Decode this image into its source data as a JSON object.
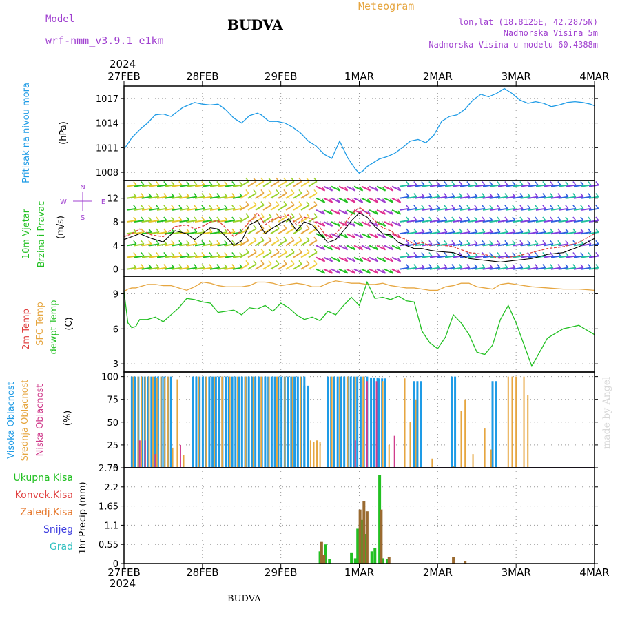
{
  "header": {
    "model_label": "Model",
    "model_name": "wrf-nmm_v3.9.1 e1km",
    "city": "BUDVA",
    "meteogram_label": "Meteogram",
    "lonlat": "lon,lat (18.8125E, 42.2875N)",
    "altitude": "Nadmorska Visina 5m",
    "model_altitude": "Nadmorska Visina u modelu 60.4388m",
    "year": "2024",
    "footer_city": "BUDVA",
    "watermark": "made by Angel"
  },
  "colors": {
    "pressure": "#1e9be6",
    "dewpoint": "#22c022",
    "sfc_temp": "#e6a640",
    "temp2m": "#e04040",
    "wind_speed": "#000000",
    "wind_gust": "#e04040",
    "high_cloud": "#1e9be6",
    "mid_cloud": "#e6a640",
    "low_cloud": "#d03c8c",
    "total_precip": "#22c022",
    "conv_precip": "#e04040",
    "frozen_precip": "#e67a30",
    "snow": "#4040e0",
    "grad": "#30c0c0",
    "purple_text": "#a040d0"
  },
  "chart_data": [
    {
      "type": "line",
      "panel": "pressure",
      "ylabel_lines": [
        "Pritisak na nivou mora",
        "(hPa)"
      ],
      "yticks": [
        1008,
        1011,
        1014,
        1017
      ],
      "ylim": [
        1007,
        1018.5
      ],
      "grid": true,
      "x": [
        0.0,
        0.1,
        0.2,
        0.3,
        0.4,
        0.5,
        0.6,
        0.75,
        0.9,
        1.0,
        1.1,
        1.2,
        1.3,
        1.4,
        1.5,
        1.6,
        1.7,
        1.75,
        1.85,
        1.95,
        2.05,
        2.15,
        2.25,
        2.35,
        2.45,
        2.55,
        2.65,
        2.75,
        2.85,
        2.95,
        3.0,
        3.05,
        3.1,
        3.15,
        3.25,
        3.35,
        3.45,
        3.55,
        3.65,
        3.75,
        3.85,
        3.95,
        4.05,
        4.15,
        4.25,
        4.35,
        4.45,
        4.55,
        4.65,
        4.75,
        4.85,
        4.95,
        5.05,
        5.15,
        5.25,
        5.35,
        5.45,
        5.55,
        5.65,
        5.75,
        5.85,
        5.95,
        6.0
      ],
      "series": [
        {
          "values": [
            1010.8,
            1012.2,
            1013.2,
            1014.0,
            1015.0,
            1015.1,
            1014.8,
            1015.9,
            1016.5,
            1016.3,
            1016.2,
            1016.3,
            1015.6,
            1014.6,
            1014.0,
            1014.9,
            1015.2,
            1015.0,
            1014.2,
            1014.2,
            1014.0,
            1013.5,
            1012.8,
            1011.8,
            1011.2,
            1010.2,
            1009.7,
            1011.8,
            1009.8,
            1008.4,
            1007.9,
            1008.2,
            1008.7,
            1009.0,
            1009.6,
            1009.9,
            1010.3,
            1011.0,
            1011.8,
            1012.0,
            1011.6,
            1012.5,
            1014.2,
            1014.8,
            1015.0,
            1015.7,
            1016.8,
            1017.5,
            1017.2,
            1017.6,
            1018.2,
            1017.6,
            1016.8,
            1016.4,
            1016.6,
            1016.4,
            1016.0,
            1016.2,
            1016.5,
            1016.6,
            1016.5,
            1016.3,
            1016.1
          ]
        }
      ]
    },
    {
      "type": "line",
      "panel": "wind",
      "ylabel_lines": [
        "10m Vjetar",
        "Brzina i Pravac",
        "(m/s)"
      ],
      "compass": [
        "N",
        "W",
        "E",
        "S"
      ],
      "yticks": [
        0,
        4,
        8,
        12
      ],
      "ylim": [
        -1.2,
        15
      ],
      "grid": true,
      "barb_rows": [
        0,
        2,
        4,
        6,
        8,
        10,
        12,
        14
      ],
      "x": [
        0.0,
        0.1,
        0.2,
        0.35,
        0.5,
        0.65,
        0.8,
        0.9,
        1.0,
        1.1,
        1.2,
        1.3,
        1.4,
        1.5,
        1.6,
        1.7,
        1.8,
        1.9,
        2.0,
        2.1,
        2.2,
        2.3,
        2.4,
        2.5,
        2.6,
        2.7,
        2.8,
        2.9,
        3.0,
        3.1,
        3.2,
        3.3,
        3.4,
        3.5,
        3.6,
        3.7,
        3.8,
        3.9,
        4.0,
        4.2,
        4.4,
        4.6,
        4.8,
        5.0,
        5.2,
        5.4,
        5.6,
        5.8,
        6.0
      ],
      "series": [
        {
          "name": "speed",
          "values": [
            5.0,
            5.5,
            6.0,
            5.2,
            4.6,
            6.5,
            6.0,
            5.0,
            6.0,
            7.0,
            6.8,
            5.5,
            4.0,
            4.8,
            7.5,
            8.2,
            6.0,
            7.0,
            7.8,
            8.5,
            6.5,
            8.0,
            7.5,
            6.0,
            4.5,
            5.0,
            6.5,
            8.2,
            9.5,
            8.8,
            7.2,
            6.0,
            5.8,
            4.5,
            4.0,
            3.5,
            3.5,
            3.2,
            3.0,
            2.8,
            1.8,
            1.5,
            1.2,
            1.5,
            1.8,
            2.5,
            2.8,
            3.8,
            5.2
          ]
        },
        {
          "name": "gust",
          "values": [
            5.5,
            6.0,
            6.8,
            5.8,
            5.5,
            7.2,
            7.5,
            6.8,
            7.2,
            8.0,
            8.2,
            7.0,
            5.5,
            6.5,
            8.0,
            9.5,
            7.5,
            8.5,
            8.8,
            9.2,
            7.5,
            8.8,
            8.5,
            7.0,
            5.2,
            6.0,
            7.5,
            9.2,
            10.5,
            9.5,
            8.2,
            7.0,
            6.5,
            5.5,
            5.0,
            4.2,
            4.5,
            4.0,
            4.2,
            3.8,
            2.8,
            2.5,
            1.8,
            2.2,
            2.8,
            3.5,
            3.8,
            4.5,
            6.0
          ]
        }
      ]
    },
    {
      "type": "line",
      "panel": "temperature",
      "ylabel_lines": [
        "2m Temp",
        "SFC Temp",
        "dewpt Temp",
        "(C)"
      ],
      "yticks": [
        3,
        6,
        9
      ],
      "ylim": [
        2.3,
        10.5
      ],
      "grid": true,
      "x": [
        0.0,
        0.05,
        0.1,
        0.15,
        0.2,
        0.3,
        0.4,
        0.5,
        0.6,
        0.7,
        0.8,
        0.9,
        1.0,
        1.1,
        1.2,
        1.3,
        1.4,
        1.5,
        1.6,
        1.7,
        1.8,
        1.9,
        2.0,
        2.1,
        2.2,
        2.3,
        2.4,
        2.5,
        2.6,
        2.7,
        2.8,
        2.9,
        3.0,
        3.1,
        3.2,
        3.3,
        3.4,
        3.5,
        3.6,
        3.7,
        3.8,
        3.9,
        4.0,
        4.1,
        4.2,
        4.3,
        4.4,
        4.5,
        4.6,
        4.7,
        4.8,
        4.9,
        5.0,
        5.2,
        5.4,
        5.6,
        5.8,
        6.0
      ],
      "series": [
        {
          "name": "sfc",
          "values": [
            9.2,
            9.4,
            9.5,
            9.5,
            9.6,
            9.8,
            9.8,
            9.7,
            9.7,
            9.5,
            9.3,
            9.6,
            10.0,
            9.9,
            9.7,
            9.6,
            9.6,
            9.6,
            9.7,
            10.0,
            10.0,
            9.9,
            9.7,
            9.8,
            9.9,
            9.8,
            9.6,
            9.6,
            9.9,
            10.1,
            10.0,
            9.9,
            9.9,
            9.8,
            9.8,
            9.9,
            9.7,
            9.6,
            9.5,
            9.5,
            9.4,
            9.3,
            9.3,
            9.6,
            9.7,
            9.9,
            9.9,
            9.6,
            9.5,
            9.4,
            9.8,
            9.9,
            9.8,
            9.6,
            9.5,
            9.4,
            9.4,
            9.3
          ]
        },
        {
          "name": "dewpoint",
          "values": [
            9.2,
            6.5,
            6.1,
            6.2,
            6.8,
            6.8,
            7.0,
            6.6,
            7.2,
            7.8,
            8.6,
            8.5,
            8.3,
            8.2,
            7.4,
            7.5,
            7.6,
            7.2,
            7.8,
            7.7,
            8.0,
            7.5,
            8.2,
            7.8,
            7.2,
            6.8,
            7.0,
            6.7,
            7.5,
            7.2,
            8.0,
            8.7,
            8.0,
            10.0,
            8.6,
            8.7,
            8.5,
            8.8,
            8.4,
            8.3,
            5.8,
            4.8,
            4.3,
            5.3,
            7.2,
            6.5,
            5.5,
            4.0,
            3.8,
            4.6,
            6.8,
            8.0,
            6.5,
            2.8,
            5.2,
            6.0,
            6.3,
            5.5
          ]
        }
      ]
    },
    {
      "type": "bar",
      "panel": "cloud",
      "ylabel_lines": [
        "Visoka Oblacnost",
        "Srednja Oblacnost",
        "Niska Oblacnost",
        "(%)"
      ],
      "yticks": [
        0,
        25,
        50,
        75,
        100
      ],
      "ylim": [
        0,
        105
      ],
      "grid": true,
      "series": [
        {
          "name": "high",
          "segments": [
            [
              0.1,
              0.6,
              100
            ],
            [
              0.88,
              1.55,
              100
            ],
            [
              1.55,
              2.3,
              100
            ],
            [
              2.3,
              2.35,
              90
            ],
            [
              2.6,
              3.1,
              100
            ],
            [
              3.15,
              3.25,
              99
            ],
            [
              3.25,
              3.35,
              98
            ],
            [
              3.7,
              3.8,
              95
            ],
            [
              4.18,
              4.23,
              100
            ],
            [
              4.7,
              4.75,
              95
            ]
          ]
        },
        {
          "name": "mid",
          "points": [
            [
              0.12,
              100
            ],
            [
              0.18,
              100
            ],
            [
              0.22,
              100
            ],
            [
              0.27,
              100
            ],
            [
              0.32,
              100
            ],
            [
              0.37,
              100
            ],
            [
              0.42,
              99
            ],
            [
              0.47,
              100
            ],
            [
              0.52,
              98
            ],
            [
              0.56,
              100
            ],
            [
              0.62,
              22
            ],
            [
              0.68,
              97
            ],
            [
              0.76,
              14
            ],
            [
              0.95,
              100
            ],
            [
              1.05,
              100
            ],
            [
              1.15,
              100
            ],
            [
              1.25,
              100
            ],
            [
              1.35,
              100
            ],
            [
              1.45,
              100
            ],
            [
              1.55,
              100
            ],
            [
              1.65,
              100
            ],
            [
              1.75,
              100
            ],
            [
              1.85,
              100
            ],
            [
              1.95,
              100
            ],
            [
              2.05,
              100
            ],
            [
              2.15,
              100
            ],
            [
              2.25,
              100
            ],
            [
              2.38,
              30
            ],
            [
              2.42,
              28
            ],
            [
              2.46,
              30
            ],
            [
              2.5,
              28
            ],
            [
              2.65,
              100
            ],
            [
              2.75,
              100
            ],
            [
              2.85,
              100
            ],
            [
              2.95,
              100
            ],
            [
              3.05,
              100
            ],
            [
              3.3,
              95
            ],
            [
              3.38,
              25
            ],
            [
              3.58,
              98
            ],
            [
              3.65,
              50
            ],
            [
              3.72,
              75
            ],
            [
              3.93,
              10
            ],
            [
              4.2,
              2
            ],
            [
              4.3,
              62
            ],
            [
              4.35,
              75
            ],
            [
              4.45,
              15
            ],
            [
              4.6,
              43
            ],
            [
              4.68,
              20
            ],
            [
              4.9,
              100
            ],
            [
              4.95,
              100
            ],
            [
              5.0,
              100
            ],
            [
              5.1,
              100
            ],
            [
              5.15,
              80
            ]
          ]
        },
        {
          "name": "low",
          "points": [
            [
              0.2,
              30
            ],
            [
              0.27,
              30
            ],
            [
              0.4,
              15
            ],
            [
              0.72,
              25
            ],
            [
              2.95,
              30
            ],
            [
              3.1,
              95
            ],
            [
              3.22,
              95
            ],
            [
              3.45,
              35
            ]
          ]
        }
      ]
    },
    {
      "type": "bar",
      "panel": "precip",
      "ylabel_lines": [
        "1hr Precip (mm)"
      ],
      "legend": [
        "Ukupna Kisa",
        "Konvek.Kisa",
        "Zaledj.Kisa",
        "Snijeg",
        "Grad"
      ],
      "yticks": [
        0,
        0.55,
        1.1,
        1.65,
        2.2,
        2.75
      ],
      "ylim": [
        0,
        2.75
      ],
      "grid": true,
      "series": [
        {
          "name": "Ukupna Kisa",
          "points": [
            [
              2.5,
              0.35
            ],
            [
              2.57,
              0.55
            ],
            [
              2.62,
              0.12
            ],
            [
              2.9,
              0.3
            ],
            [
              2.95,
              0.15
            ],
            [
              2.98,
              1.0
            ],
            [
              3.03,
              1.25
            ],
            [
              3.07,
              0.85
            ],
            [
              3.16,
              0.35
            ],
            [
              3.2,
              0.45
            ],
            [
              3.26,
              2.55
            ],
            [
              3.3,
              0.15
            ],
            [
              3.36,
              0.12
            ]
          ]
        },
        {
          "name": "Konvek.Kisa",
          "points": [
            [
              2.52,
              0.62
            ],
            [
              2.55,
              0.25
            ],
            [
              3.01,
              1.55
            ],
            [
              3.06,
              1.8
            ],
            [
              3.1,
              1.5
            ],
            [
              3.28,
              1.55
            ],
            [
              3.38,
              0.18
            ],
            [
              4.2,
              0.18
            ],
            [
              4.35,
              0.07
            ]
          ]
        }
      ]
    }
  ],
  "x_axis": {
    "top_year": "2024",
    "bottom_year": "2024",
    "ticks": [
      "27FEB",
      "28FEB",
      "29FEB",
      "1MAR",
      "2MAR",
      "3MAR",
      "4MAR"
    ]
  }
}
